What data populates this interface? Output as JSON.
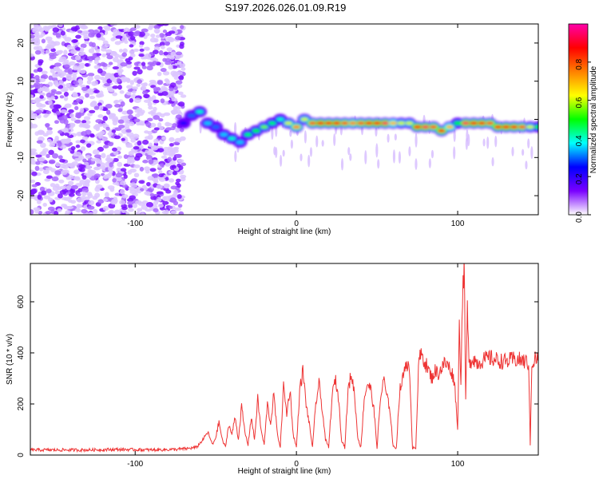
{
  "title": "S197.2026.026.01.09.R19",
  "chart_data": [
    {
      "type": "heatmap",
      "xlabel": "Height of straight line (km)",
      "ylabel": "Frequency (Hz)",
      "xlim": [
        -165,
        150
      ],
      "ylim": [
        -25,
        25
      ],
      "x_ticks": [
        -100,
        0,
        100
      ],
      "x_tick_labels": [
        "-100",
        "0",
        "100"
      ],
      "y_ticks": [
        -20,
        -10,
        0,
        10,
        20
      ],
      "y_tick_labels": [
        "-20",
        "-10",
        "0",
        "10",
        "20"
      ],
      "colorbar": {
        "label": "Normalized spectral amplitude",
        "range": [
          0.0,
          1.0
        ],
        "ticks": [
          0.0,
          0.2,
          0.4,
          0.6,
          0.8
        ],
        "tick_labels": [
          "0.0",
          "0.2",
          "0.4",
          "0.6",
          "0.8"
        ],
        "colors": [
          "#ffffff",
          "#7a00ff",
          "#0000ff",
          "#00ffff",
          "#00ff00",
          "#ffff00",
          "#ff8000",
          "#ff0000",
          "#ff00aa"
        ]
      },
      "ridge": {
        "name": "peak frequency",
        "x": [
          -70,
          -65,
          -60,
          -55,
          -50,
          -45,
          -40,
          -35,
          -30,
          -25,
          -20,
          -15,
          -10,
          -5,
          0,
          5,
          10,
          15,
          20,
          25,
          30,
          35,
          40,
          45,
          50,
          55,
          60,
          65,
          70,
          75,
          80,
          85,
          90,
          95,
          100,
          105,
          110,
          115,
          120,
          125,
          130,
          135,
          140,
          145,
          150
        ],
        "y": [
          -1,
          1,
          2,
          -1,
          -2,
          -4,
          -5,
          -6,
          -4,
          -3,
          -2,
          -1,
          0,
          -1,
          -2,
          0,
          -1,
          -1,
          -1,
          -1,
          -1,
          -1,
          -1,
          -1,
          -1,
          -1,
          -1,
          -1,
          -1,
          -2,
          -2,
          -2,
          -3,
          -2,
          -1,
          -1,
          -1,
          -1,
          -1,
          -2,
          -2,
          -2,
          -2,
          -2,
          -2
        ],
        "amplitude": [
          0.25,
          0.3,
          0.4,
          0.35,
          0.3,
          0.35,
          0.4,
          0.35,
          0.45,
          0.5,
          0.55,
          0.45,
          0.4,
          0.6,
          0.75,
          0.6,
          0.8,
          0.9,
          0.85,
          0.9,
          0.8,
          0.75,
          0.8,
          0.85,
          0.9,
          0.95,
          0.7,
          0.6,
          0.6,
          0.9,
          0.95,
          0.8,
          0.85,
          0.7,
          0.5,
          0.95,
          0.9,
          0.85,
          0.8,
          0.85,
          0.9,
          0.85,
          0.8,
          0.6,
          0.5
        ]
      }
    },
    {
      "type": "line",
      "xlabel": "Height of straight line (km)",
      "ylabel": "SNR (10 * v/v)",
      "xlim": [
        -165,
        150
      ],
      "ylim": [
        0,
        750
      ],
      "x_ticks": [
        -100,
        0,
        100
      ],
      "x_tick_labels": [
        "-100",
        "0",
        "100"
      ],
      "y_ticks": [
        0,
        200,
        400,
        600
      ],
      "y_tick_labels": [
        "0",
        "200",
        "400",
        "600"
      ],
      "color": "#ee3333",
      "x": [
        -165,
        -150,
        -130,
        -110,
        -90,
        -75,
        -68,
        -62,
        -58,
        -55,
        -52,
        -50,
        -48,
        -46,
        -44,
        -42,
        -40,
        -38,
        -36,
        -34,
        -32,
        -30,
        -28,
        -26,
        -24,
        -22,
        -20,
        -18,
        -16,
        -14,
        -12,
        -10,
        -8,
        -6,
        -4,
        -2,
        0,
        2,
        4,
        6,
        8,
        10,
        12,
        14,
        16,
        18,
        20,
        22,
        24,
        26,
        28,
        30,
        32,
        34,
        36,
        38,
        40,
        42,
        44,
        46,
        48,
        50,
        52,
        54,
        56,
        58,
        60,
        62,
        64,
        66,
        68,
        70,
        72,
        74,
        76,
        78,
        80,
        82,
        84,
        86,
        88,
        90,
        92,
        94,
        96,
        98,
        100,
        101,
        102,
        103,
        104,
        105,
        106,
        107,
        108,
        110,
        112,
        115,
        120,
        125,
        130,
        135,
        140,
        144,
        145,
        146,
        147,
        148,
        150
      ],
      "y": [
        20,
        20,
        20,
        22,
        20,
        22,
        25,
        30,
        60,
        90,
        40,
        70,
        130,
        60,
        30,
        120,
        80,
        150,
        60,
        190,
        90,
        40,
        150,
        60,
        220,
        100,
        40,
        200,
        120,
        240,
        90,
        30,
        270,
        160,
        260,
        80,
        30,
        250,
        330,
        200,
        120,
        30,
        200,
        280,
        180,
        60,
        30,
        220,
        300,
        230,
        60,
        30,
        250,
        320,
        240,
        70,
        30,
        220,
        280,
        260,
        180,
        30,
        210,
        300,
        230,
        180,
        30,
        30,
        250,
        300,
        370,
        330,
        30,
        30,
        380,
        390,
        360,
        330,
        300,
        330,
        320,
        340,
        360,
        350,
        330,
        290,
        100,
        500,
        300,
        620,
        760,
        200,
        580,
        350,
        370,
        380,
        360,
        370,
        380,
        370,
        365,
        375,
        370,
        360,
        40,
        370,
        360,
        380,
        370
      ]
    }
  ]
}
